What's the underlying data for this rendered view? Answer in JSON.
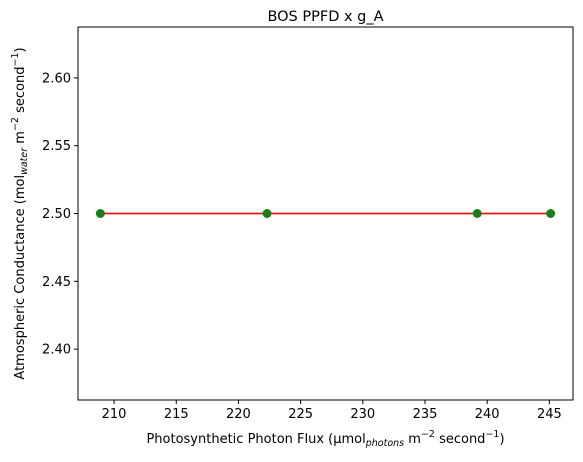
{
  "chart_data": {
    "type": "line",
    "title": "BOS PPFD x g_A",
    "xlabel": {
      "prefix": "Photosynthetic Photon Flux (µmol",
      "sub": "photons",
      "mid": " m",
      "sup1": "−2",
      "mid2": " second",
      "sup2": "−1",
      "suffix": ")"
    },
    "ylabel": {
      "prefix": "Atmospheric Conductance (mol",
      "sub": "water",
      "mid": " m",
      "sup1": "−2",
      "mid2": " second",
      "sup2": "−1",
      "suffix": ")"
    },
    "xlim": [
      207.1,
      246.9
    ],
    "ylim": [
      2.3625,
      2.6375
    ],
    "xticks": [
      210,
      215,
      220,
      225,
      230,
      235,
      240,
      245
    ],
    "yticks": [
      2.4,
      2.45,
      2.5,
      2.55,
      2.6
    ],
    "ytick_labels": [
      "2.40",
      "2.45",
      "2.50",
      "2.55",
      "2.60"
    ],
    "series": [
      {
        "x": [
          208.9,
          222.3,
          239.2,
          245.1
        ],
        "y": [
          2.5,
          2.5,
          2.5,
          2.5
        ],
        "marker_color": "#1a7f1a",
        "line_color": "#e8170f"
      }
    ],
    "grid": false,
    "legend": "none"
  }
}
